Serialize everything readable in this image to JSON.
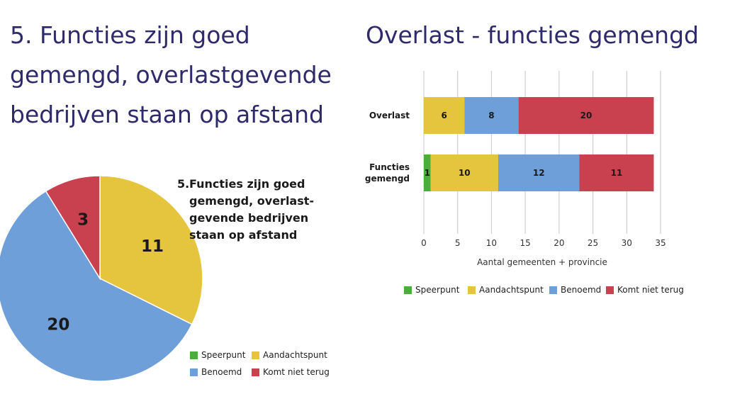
{
  "page": {
    "title": "5. Functies zijn goed gemengd, overlastgevende bedrijven staan op afstand",
    "colors": {
      "Speerpunt": "#4aad3c",
      "Aandachtspunt": "#e5c53d",
      "Benoemd": "#6f9fd8",
      "Komt niet terug": "#c9404f"
    }
  },
  "chart_data": [
    {
      "type": "pie",
      "title_number": "5.",
      "title_text": "Functies zijn goed gemengd, overlast-gevende bedrijven staan op afstand",
      "slices": [
        {
          "label": "Speerpunt",
          "value": 0
        },
        {
          "label": "Aandachtspunt",
          "value": 11
        },
        {
          "label": "Benoemd",
          "value": 20
        },
        {
          "label": "Komt niet terug",
          "value": 3
        }
      ],
      "legend": [
        "Speerpunt",
        "Aandachtspunt",
        "Benoemd",
        "Komt niet terug"
      ],
      "legend_placement": "bottom-right"
    },
    {
      "type": "bar",
      "orientation": "horizontal",
      "stacked": true,
      "title": "Overlast - functies gemengd",
      "categories": [
        "Overlast",
        "Functies gemengd"
      ],
      "series": [
        {
          "name": "Speerpunt",
          "values": [
            0,
            1
          ]
        },
        {
          "name": "Aandachtspunt",
          "values": [
            6,
            10
          ]
        },
        {
          "name": "Benoemd",
          "values": [
            8,
            12
          ]
        },
        {
          "name": "Komt niet terug",
          "values": [
            20,
            11
          ]
        }
      ],
      "xlabel": "Aantal gemeenten + provincie",
      "ylabel": "",
      "xlim": [
        0,
        35
      ],
      "xticks": [
        0,
        5,
        10,
        15,
        20,
        25,
        30,
        35
      ],
      "grid": "vertical",
      "legend_placement": "bottom"
    }
  ]
}
